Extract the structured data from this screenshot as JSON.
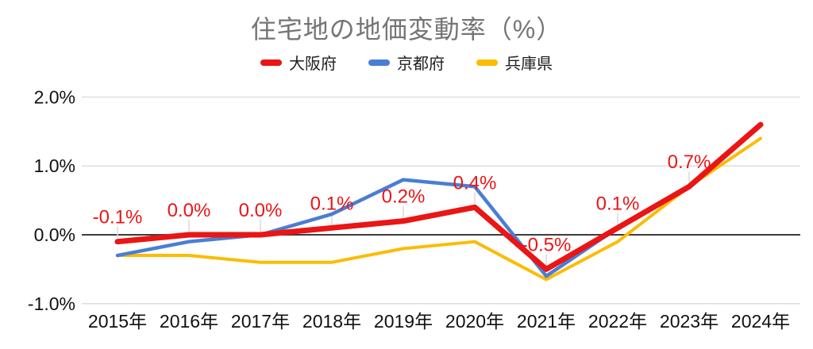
{
  "title": "住宅地の地価変動率（%）",
  "chart_data": {
    "type": "line",
    "categories": [
      "2015年",
      "2016年",
      "2017年",
      "2018年",
      "2019年",
      "2020年",
      "2021年",
      "2022年",
      "2023年",
      "2024年"
    ],
    "series": [
      {
        "name": "大阪府",
        "color": "#ea1515",
        "values": [
          -0.1,
          0.0,
          0.0,
          0.1,
          0.2,
          0.4,
          -0.5,
          0.1,
          0.7,
          1.6
        ],
        "point_labels": [
          "-0.1%",
          "0.0%",
          "0.0%",
          "0.1%",
          "0.2%",
          "0.4%",
          "-0.5%",
          "0.1%",
          "0.7%",
          ""
        ]
      },
      {
        "name": "京都府",
        "color": "#4a7ed4",
        "values": [
          -0.3,
          -0.1,
          0.0,
          0.3,
          0.8,
          0.7,
          -0.6,
          0.1,
          0.7,
          1.6
        ],
        "point_labels": [
          "",
          "",
          "",
          "",
          "",
          "",
          "",
          "",
          "",
          ""
        ]
      },
      {
        "name": "兵庫県",
        "color": "#fbbc04",
        "values": [
          -0.3,
          -0.3,
          -0.4,
          -0.4,
          -0.2,
          -0.1,
          -0.65,
          -0.1,
          0.7,
          1.4
        ],
        "point_labels": [
          "",
          "",
          "",
          "",
          "",
          "",
          "",
          "",
          "",
          ""
        ]
      }
    ],
    "ylim": [
      -1.0,
      2.0
    ],
    "yticks": [
      {
        "value": 2.0,
        "label": "2.0%"
      },
      {
        "value": 1.0,
        "label": "1.0%"
      },
      {
        "value": 0.0,
        "label": "0.0%"
      },
      {
        "value": -1.0,
        "label": "-1.0%"
      }
    ],
    "grid": true,
    "legend_position": "top",
    "colors": {
      "data_label": "#ea1515",
      "gridline": "#dadada",
      "zero_line": "#3c3c3c",
      "axis_text": "#111111",
      "title_text": "#757575",
      "leader_line": "#dcdcdc"
    }
  }
}
